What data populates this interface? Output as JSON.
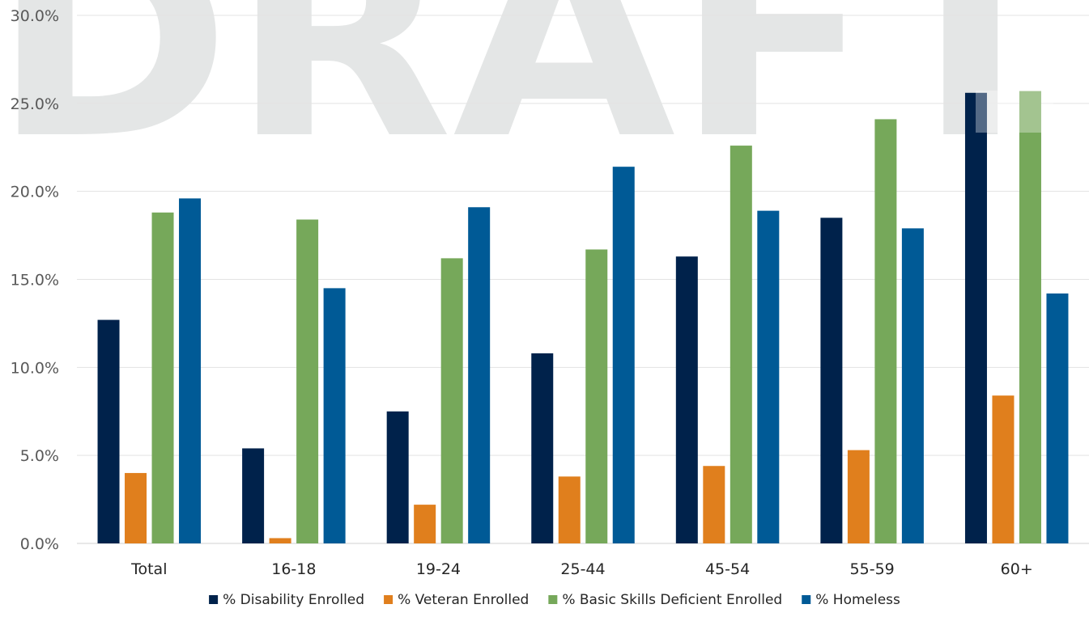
{
  "watermark": {
    "text": "DRAFT",
    "color": "#e4e6e6"
  },
  "chart_data": {
    "type": "bar",
    "title": "",
    "xlabel": "",
    "ylabel": "",
    "categories": [
      "Total",
      "16-18",
      "19-24",
      "25-44",
      "45-54",
      "55-59",
      "60+"
    ],
    "ylim": [
      0,
      30
    ],
    "yticks": [
      0,
      5,
      10,
      15,
      20,
      25,
      30
    ],
    "ytick_labels": [
      "0.0%",
      "5.0%",
      "10.0%",
      "15.0%",
      "20.0%",
      "25.0%",
      "30.0%"
    ],
    "grid": true,
    "legend_position": "bottom",
    "series": [
      {
        "name": "% Disability Enrolled",
        "color": "#00224b",
        "values": [
          12.7,
          5.4,
          7.5,
          10.8,
          16.3,
          18.5,
          25.6
        ]
      },
      {
        "name": "% Veteran Enrolled",
        "color": "#e07f1d",
        "values": [
          4.0,
          0.3,
          2.2,
          3.8,
          4.4,
          5.3,
          8.4
        ]
      },
      {
        "name": "% Basic Skills Deficient Enrolled",
        "color": "#76a85a",
        "values": [
          18.8,
          18.4,
          16.2,
          16.7,
          22.6,
          24.1,
          25.7
        ]
      },
      {
        "name": "% Homeless",
        "color": "#005a96",
        "values": [
          19.6,
          14.5,
          19.1,
          21.4,
          18.9,
          17.9,
          14.2
        ]
      }
    ]
  }
}
